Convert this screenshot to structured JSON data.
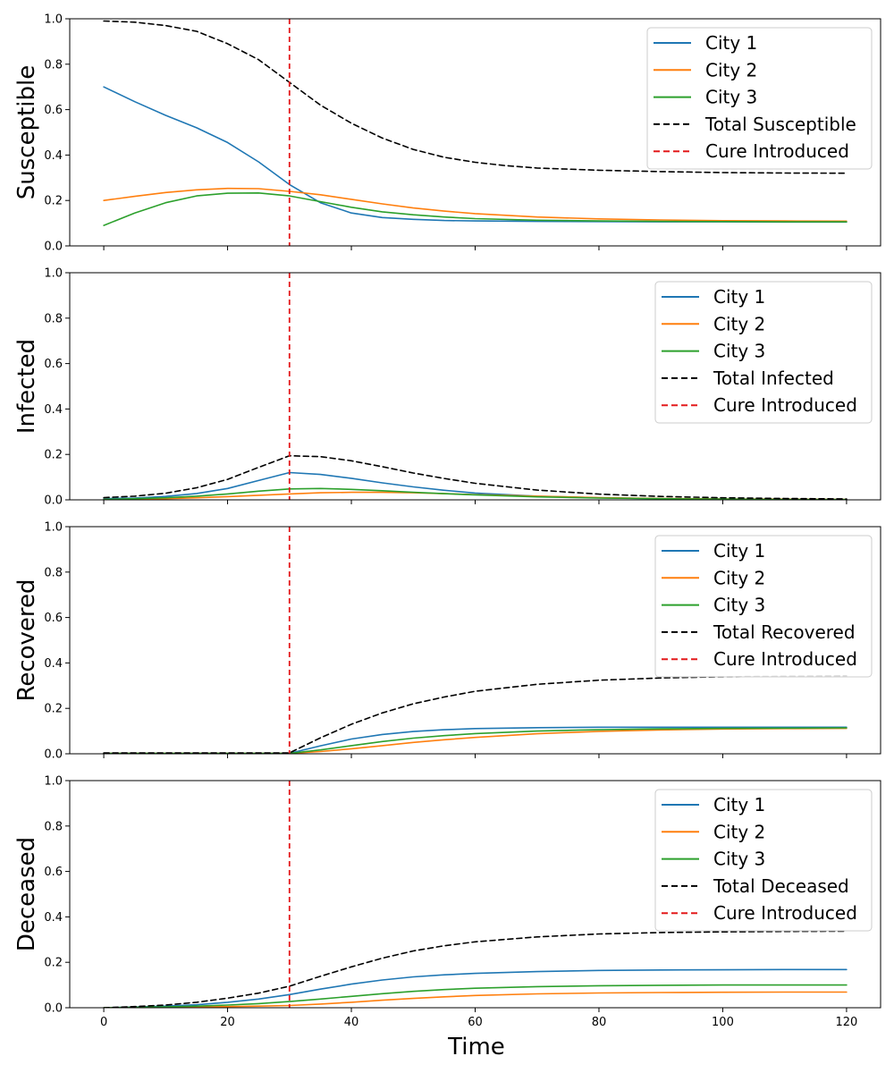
{
  "chart_data": {
    "type": "line",
    "xlabel": "Time",
    "xlim": [
      -5.5,
      125.5
    ],
    "xticks": [
      0,
      20,
      40,
      60,
      80,
      100,
      120
    ],
    "xtick_labels": [
      "0",
      "20",
      "40",
      "60",
      "80",
      "100",
      "120"
    ],
    "yticks": [
      0.0,
      0.2,
      0.4,
      0.6,
      0.8,
      1.0
    ],
    "ytick_labels": [
      "0.0",
      "0.2",
      "0.4",
      "0.6",
      "0.8",
      "1.0"
    ],
    "colors": {
      "City 1": "#1f77b4",
      "City 2": "#ff7f0e",
      "City 3": "#2ca02c",
      "total": "#000000",
      "cure": "#e31a1c"
    },
    "legend_location": "upper right",
    "panels": [
      {
        "ylabel": "Susceptible",
        "ylim": [
          0,
          1
        ],
        "cure_time": 30,
        "legend": [
          "City 1",
          "City 2",
          "City 3",
          "Total Susceptible",
          "Cure Introduced"
        ],
        "series": [
          {
            "name": "City 1",
            "style": "solid",
            "x": [
              0,
              5,
              10,
              15,
              20,
              25,
              30,
              35,
              40,
              45,
              50,
              55,
              60,
              70,
              80,
              90,
              100,
              110,
              120
            ],
            "values": [
              0.7,
              0.635,
              0.575,
              0.52,
              0.455,
              0.37,
              0.27,
              0.19,
              0.145,
              0.125,
              0.117,
              0.112,
              0.11,
              0.108,
              0.107,
              0.106,
              0.106,
              0.105,
              0.105
            ]
          },
          {
            "name": "City 2",
            "style": "solid",
            "x": [
              0,
              5,
              10,
              15,
              20,
              25,
              30,
              35,
              40,
              45,
              50,
              55,
              60,
              70,
              80,
              90,
              100,
              110,
              120
            ],
            "values": [
              0.2,
              0.218,
              0.235,
              0.247,
              0.253,
              0.252,
              0.24,
              0.225,
              0.205,
              0.185,
              0.167,
              0.153,
              0.142,
              0.127,
              0.119,
              0.114,
              0.111,
              0.11,
              0.109
            ]
          },
          {
            "name": "City 3",
            "style": "solid",
            "x": [
              0,
              5,
              10,
              15,
              20,
              25,
              30,
              35,
              40,
              45,
              50,
              55,
              60,
              70,
              80,
              90,
              100,
              110,
              120
            ],
            "values": [
              0.09,
              0.145,
              0.19,
              0.22,
              0.232,
              0.233,
              0.22,
              0.195,
              0.17,
              0.15,
              0.137,
              0.127,
              0.12,
              0.113,
              0.11,
              0.108,
              0.107,
              0.106,
              0.106
            ]
          },
          {
            "name": "Total Susceptible",
            "style": "dashed",
            "x": [
              0,
              5,
              10,
              15,
              20,
              25,
              30,
              35,
              40,
              45,
              50,
              55,
              60,
              65,
              70,
              80,
              90,
              100,
              110,
              120
            ],
            "values": [
              0.99,
              0.985,
              0.97,
              0.945,
              0.89,
              0.82,
              0.72,
              0.62,
              0.54,
              0.475,
              0.425,
              0.39,
              0.368,
              0.353,
              0.343,
              0.333,
              0.327,
              0.323,
              0.321,
              0.32
            ]
          }
        ]
      },
      {
        "ylabel": "Infected",
        "ylim": [
          0,
          1
        ],
        "cure_time": 30,
        "legend": [
          "City 1",
          "City 2",
          "City 3",
          "Total Infected",
          "Cure Introduced"
        ],
        "series": [
          {
            "name": "City 1",
            "style": "solid",
            "x": [
              0,
              5,
              10,
              15,
              20,
              25,
              30,
              35,
              40,
              45,
              50,
              55,
              60,
              70,
              80,
              90,
              100,
              110,
              120
            ],
            "values": [
              0.005,
              0.008,
              0.015,
              0.028,
              0.05,
              0.085,
              0.12,
              0.112,
              0.095,
              0.075,
              0.057,
              0.042,
              0.03,
              0.016,
              0.009,
              0.005,
              0.003,
              0.002,
              0.001
            ]
          },
          {
            "name": "City 2",
            "style": "solid",
            "x": [
              0,
              5,
              10,
              15,
              20,
              25,
              30,
              35,
              40,
              45,
              50,
              55,
              60,
              70,
              80,
              90,
              100,
              110,
              120
            ],
            "values": [
              0.002,
              0.003,
              0.005,
              0.009,
              0.014,
              0.02,
              0.026,
              0.031,
              0.033,
              0.033,
              0.031,
              0.027,
              0.023,
              0.016,
              0.01,
              0.006,
              0.004,
              0.003,
              0.002
            ]
          },
          {
            "name": "City 3",
            "style": "solid",
            "x": [
              0,
              5,
              10,
              15,
              20,
              25,
              30,
              35,
              40,
              45,
              50,
              55,
              60,
              70,
              80,
              90,
              100,
              110,
              120
            ],
            "values": [
              0.002,
              0.005,
              0.009,
              0.016,
              0.026,
              0.038,
              0.048,
              0.05,
              0.046,
              0.04,
              0.033,
              0.027,
              0.022,
              0.013,
              0.008,
              0.005,
              0.003,
              0.002,
              0.001
            ]
          },
          {
            "name": "Total Infected",
            "style": "dashed",
            "x": [
              0,
              5,
              10,
              15,
              20,
              25,
              30,
              35,
              40,
              45,
              50,
              55,
              60,
              70,
              80,
              90,
              100,
              110,
              120
            ],
            "values": [
              0.01,
              0.016,
              0.029,
              0.053,
              0.09,
              0.143,
              0.194,
              0.19,
              0.172,
              0.146,
              0.118,
              0.094,
              0.073,
              0.043,
              0.025,
              0.015,
              0.009,
              0.006,
              0.004
            ]
          }
        ]
      },
      {
        "ylabel": "Recovered",
        "ylim": [
          0,
          1
        ],
        "cure_time": 30,
        "legend": [
          "City 1",
          "City 2",
          "City 3",
          "Total Recovered",
          "Cure Introduced"
        ],
        "series": [
          {
            "name": "City 1",
            "style": "solid",
            "x": [
              0,
              10,
              20,
              30,
              35,
              40,
              45,
              50,
              55,
              60,
              70,
              80,
              90,
              100,
              110,
              120
            ],
            "values": [
              0.002,
              0.002,
              0.002,
              0.002,
              0.035,
              0.065,
              0.085,
              0.098,
              0.106,
              0.111,
              0.115,
              0.117,
              0.117,
              0.117,
              0.117,
              0.117
            ]
          },
          {
            "name": "City 2",
            "style": "solid",
            "x": [
              0,
              10,
              20,
              30,
              35,
              40,
              45,
              50,
              55,
              60,
              70,
              80,
              90,
              100,
              110,
              120
            ],
            "values": [
              0.002,
              0.002,
              0.002,
              0.002,
              0.01,
              0.022,
              0.036,
              0.05,
              0.062,
              0.072,
              0.088,
              0.099,
              0.105,
              0.109,
              0.111,
              0.112
            ]
          },
          {
            "name": "City 3",
            "style": "solid",
            "x": [
              0,
              10,
              20,
              30,
              35,
              40,
              45,
              50,
              55,
              60,
              70,
              80,
              90,
              100,
              110,
              120
            ],
            "values": [
              0.002,
              0.002,
              0.002,
              0.002,
              0.017,
              0.036,
              0.054,
              0.069,
              0.08,
              0.089,
              0.1,
              0.106,
              0.11,
              0.112,
              0.113,
              0.114
            ]
          },
          {
            "name": "Total Recovered",
            "style": "dashed",
            "x": [
              0,
              10,
              20,
              30,
              35,
              40,
              45,
              50,
              55,
              60,
              70,
              80,
              90,
              100,
              110,
              120
            ],
            "values": [
              0.004,
              0.004,
              0.004,
              0.004,
              0.07,
              0.13,
              0.18,
              0.22,
              0.25,
              0.275,
              0.306,
              0.324,
              0.334,
              0.339,
              0.341,
              0.343
            ]
          }
        ]
      },
      {
        "ylabel": "Deceased",
        "ylim": [
          0,
          1
        ],
        "cure_time": 30,
        "legend": [
          "City 1",
          "City 2",
          "City 3",
          "Total Deceased",
          "Cure Introduced"
        ],
        "series": [
          {
            "name": "City 1",
            "style": "solid",
            "x": [
              0,
              5,
              10,
              15,
              20,
              25,
              30,
              35,
              40,
              45,
              50,
              55,
              60,
              70,
              80,
              90,
              100,
              110,
              120
            ],
            "values": [
              0.0,
              0.003,
              0.007,
              0.013,
              0.024,
              0.038,
              0.058,
              0.082,
              0.104,
              0.122,
              0.136,
              0.145,
              0.151,
              0.159,
              0.164,
              0.166,
              0.167,
              0.168,
              0.168
            ]
          },
          {
            "name": "City 2",
            "style": "solid",
            "x": [
              0,
              5,
              10,
              15,
              20,
              25,
              30,
              35,
              40,
              45,
              50,
              55,
              60,
              70,
              80,
              90,
              100,
              110,
              120
            ],
            "values": [
              0.0,
              0.001,
              0.002,
              0.003,
              0.005,
              0.007,
              0.01,
              0.016,
              0.024,
              0.033,
              0.041,
              0.048,
              0.054,
              0.061,
              0.065,
              0.067,
              0.068,
              0.069,
              0.069
            ]
          },
          {
            "name": "City 3",
            "style": "solid",
            "x": [
              0,
              5,
              10,
              15,
              20,
              25,
              30,
              35,
              40,
              45,
              50,
              55,
              60,
              70,
              80,
              90,
              100,
              110,
              120
            ],
            "values": [
              0.0,
              0.002,
              0.004,
              0.007,
              0.012,
              0.018,
              0.027,
              0.038,
              0.05,
              0.062,
              0.072,
              0.08,
              0.086,
              0.093,
              0.097,
              0.099,
              0.1,
              0.1,
              0.1
            ]
          },
          {
            "name": "Total Deceased",
            "style": "dashed",
            "x": [
              0,
              5,
              10,
              15,
              20,
              25,
              30,
              35,
              40,
              45,
              50,
              55,
              60,
              70,
              80,
              90,
              100,
              110,
              120
            ],
            "values": [
              0.0,
              0.005,
              0.012,
              0.024,
              0.042,
              0.064,
              0.095,
              0.138,
              0.18,
              0.218,
              0.25,
              0.273,
              0.29,
              0.312,
              0.325,
              0.331,
              0.334,
              0.336,
              0.337
            ]
          }
        ]
      }
    ]
  }
}
